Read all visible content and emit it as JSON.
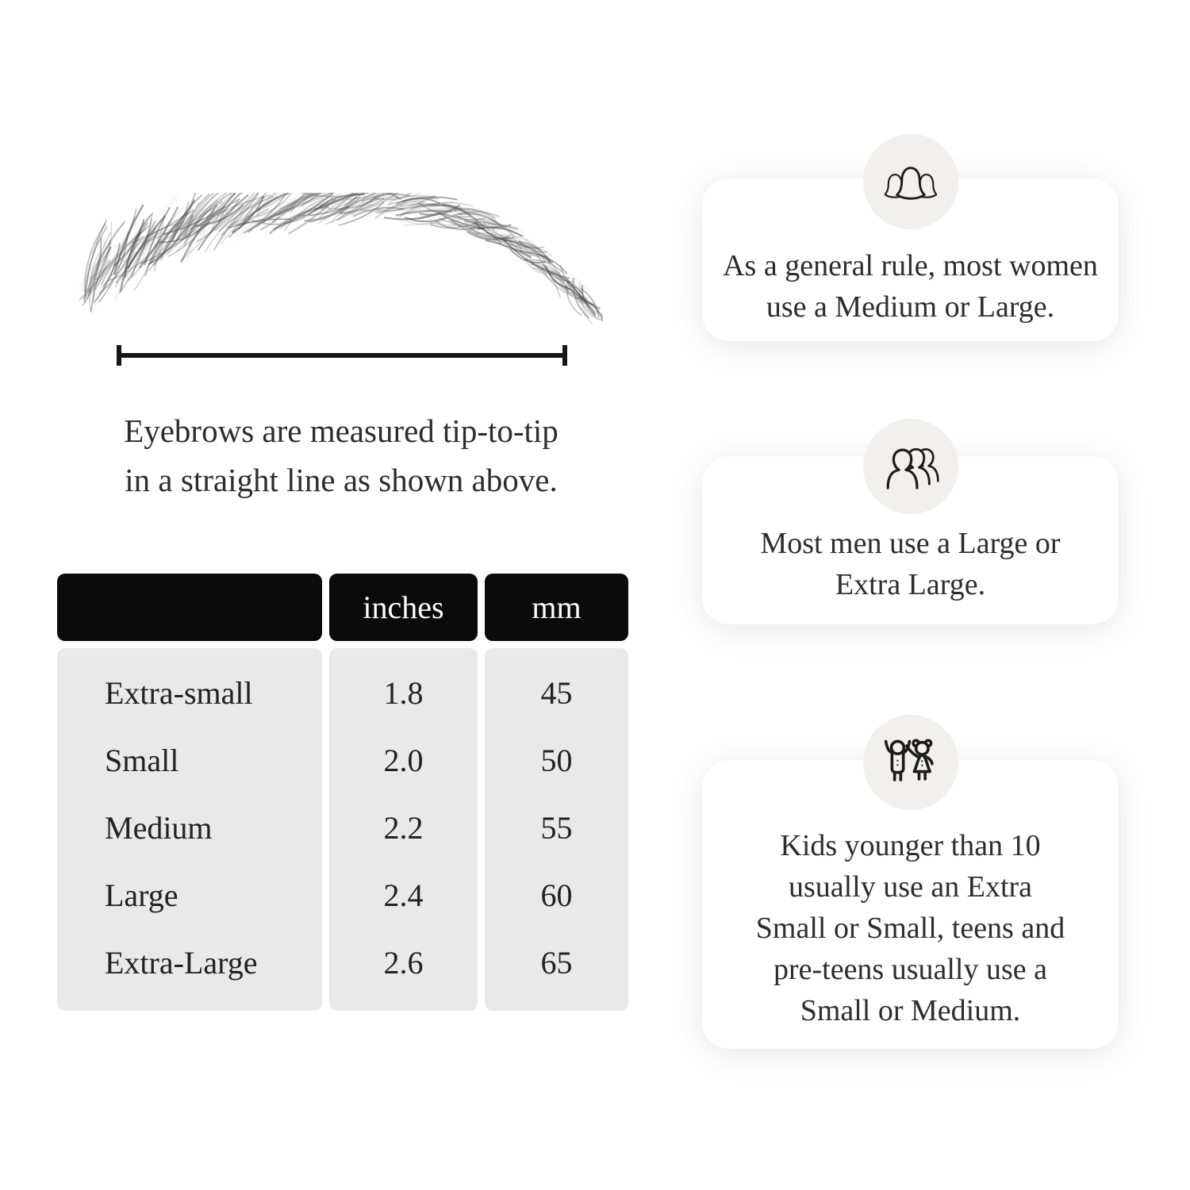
{
  "illustration": {
    "caption_lines": [
      "Eyebrows are measured tip-to-tip",
      "in a straight line as shown above."
    ]
  },
  "size_table": {
    "columns": [
      "",
      "inches",
      "mm"
    ],
    "rows": [
      {
        "size": "Extra-small",
        "inches": "1.8",
        "mm": "45"
      },
      {
        "size": "Small",
        "inches": "2.0",
        "mm": "50"
      },
      {
        "size": "Medium",
        "inches": "2.2",
        "mm": "55"
      },
      {
        "size": "Large",
        "inches": "2.4",
        "mm": "60"
      },
      {
        "size": "Extra-Large",
        "inches": "2.6",
        "mm": "65"
      }
    ]
  },
  "tips": [
    {
      "icon": "women-group-icon",
      "lines": [
        "As a general rule, most women",
        "use a Medium or Large."
      ]
    },
    {
      "icon": "men-group-icon",
      "lines": [
        "Most men use a Large or",
        "Extra Large."
      ]
    },
    {
      "icon": "kids-icon",
      "lines": [
        "Kids younger than 10",
        "usually use an Extra",
        "Small or Small, teens and",
        "pre-teens usually use a",
        "Small or Medium."
      ]
    }
  ],
  "colors": {
    "page_bg": "#ffffff",
    "table_header_bg": "#0b0b0b",
    "table_header_text": "#ffffff",
    "table_body_bg": "#e9e9e9",
    "card_bg": "#ffffff",
    "icon_circle_bg": "#f1f0ef",
    "line_color": "#161616",
    "text_color": "#2d2d2d"
  }
}
